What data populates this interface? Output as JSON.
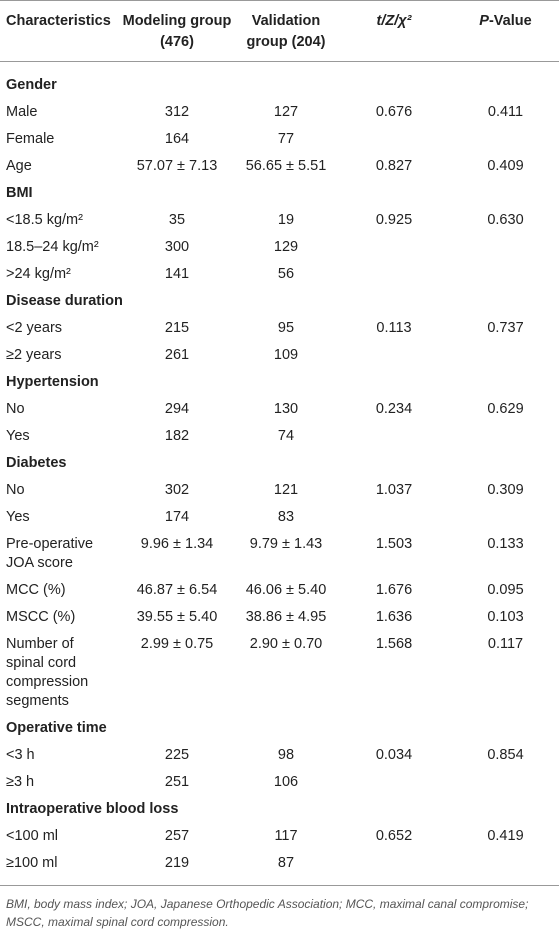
{
  "table": {
    "header": [
      [
        {
          "text": "Characteristics",
          "italic": false
        }
      ],
      [
        {
          "text": "Modeling group (476)",
          "italic": false
        }
      ],
      [
        {
          "text": "Validation group (204)",
          "italic": false
        }
      ],
      [
        {
          "text": "t/Z/χ²",
          "italic": true
        }
      ],
      [
        {
          "text": "P",
          "italic": true
        },
        {
          "text": "-Value",
          "italic": false
        }
      ]
    ],
    "rows": [
      [
        "Gender"
      ],
      [
        "Male",
        "312",
        "127",
        "0.676",
        "0.411"
      ],
      [
        "Female",
        "164",
        "77",
        "",
        ""
      ],
      [
        "Age",
        "57.07 ± 7.13",
        "56.65 ± 5.51",
        "0.827",
        "0.409"
      ],
      [
        "BMI"
      ],
      [
        "<18.5 kg/m²",
        "35",
        "19",
        "0.925",
        "0.630"
      ],
      [
        "18.5–24 kg/m²",
        "300",
        "129",
        "",
        ""
      ],
      [
        ">24 kg/m²",
        "141",
        "56",
        "",
        ""
      ],
      [
        "Disease duration"
      ],
      [
        "<2 years",
        "215",
        "95",
        "0.113",
        "0.737"
      ],
      [
        "≥2 years",
        "261",
        "109",
        "",
        ""
      ],
      [
        "Hypertension"
      ],
      [
        "No",
        "294",
        "130",
        "0.234",
        "0.629"
      ],
      [
        "Yes",
        "182",
        "74",
        "",
        ""
      ],
      [
        "Diabetes"
      ],
      [
        "No",
        "302",
        "121",
        "1.037",
        "0.309"
      ],
      [
        "Yes",
        "174",
        "83",
        "",
        ""
      ],
      [
        "Pre-operative JOA score",
        "9.96 ± 1.34",
        "9.79 ± 1.43",
        "1.503",
        "0.133"
      ],
      [
        "MCC (%)",
        "46.87 ± 6.54",
        "46.06 ± 5.40",
        "1.676",
        "0.095"
      ],
      [
        "MSCC (%)",
        "39.55 ± 5.40",
        "38.86 ± 4.95",
        "1.636",
        "0.103"
      ],
      [
        "Number of spinal cord compression segments",
        "2.99 ± 0.75",
        "2.90 ± 0.70",
        "1.568",
        "0.117"
      ],
      [
        "Operative time"
      ],
      [
        "<3 h",
        "225",
        "98",
        "0.034",
        "0.854"
      ],
      [
        "≥3 h",
        "251",
        "106",
        "",
        ""
      ],
      [
        "Intraoperative blood loss"
      ],
      [
        "<100 ml",
        "257",
        "117",
        "0.652",
        "0.419"
      ],
      [
        "≥100 ml",
        "219",
        "87",
        "",
        ""
      ]
    ],
    "footnote": "BMI, body mass index; JOA, Japanese Orthopedic Association; MCC, maximal canal compromise; MSCC, maximal spinal cord compression."
  }
}
